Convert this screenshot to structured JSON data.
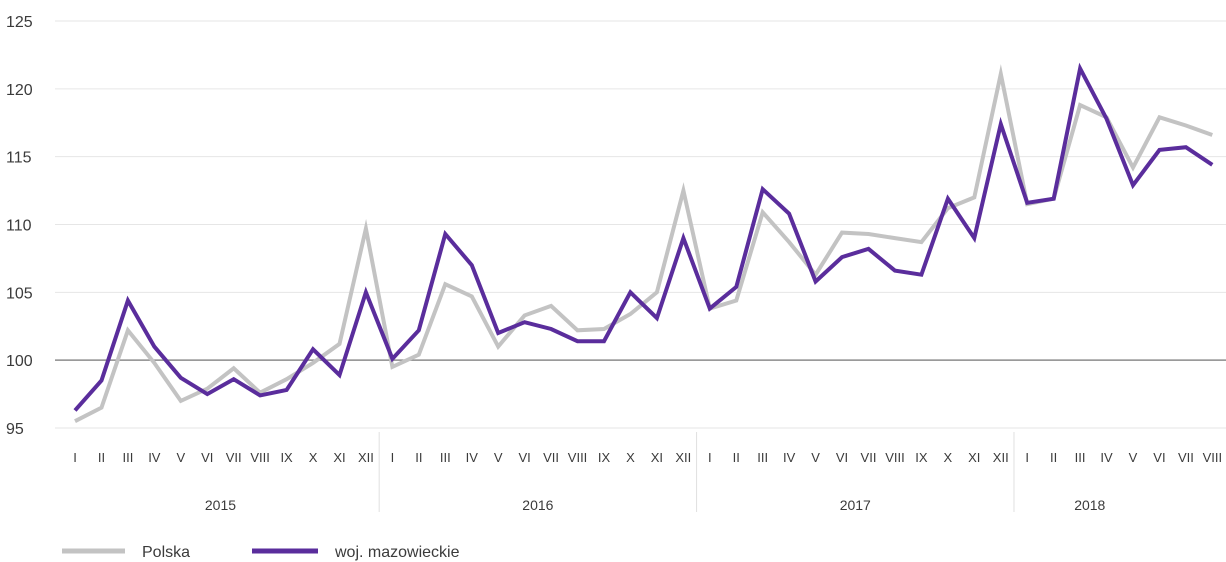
{
  "chart_data": {
    "type": "line",
    "ylim": [
      95,
      125
    ],
    "yticks": [
      95,
      100,
      105,
      110,
      115,
      120,
      125
    ],
    "reference_line": 100,
    "grid": "horizontal",
    "legend_position": "bottom-left",
    "month_labels": [
      "I",
      "II",
      "III",
      "IV",
      "V",
      "VI",
      "VII",
      "VIII",
      "IX",
      "X",
      "XI",
      "XII"
    ],
    "years": [
      {
        "label": "2015",
        "months": 12
      },
      {
        "label": "2016",
        "months": 12
      },
      {
        "label": "2017",
        "months": 12
      },
      {
        "label": "2018",
        "months": 8
      }
    ],
    "series": [
      {
        "name": "Polska",
        "color": "#c3c3c3",
        "values": [
          95.5,
          96.5,
          102.2,
          99.8,
          97.0,
          97.9,
          99.4,
          97.6,
          98.6,
          99.8,
          101.2,
          109.7,
          99.5,
          100.4,
          105.6,
          104.7,
          101.0,
          103.3,
          104.0,
          102.2,
          102.3,
          103.4,
          105.0,
          112.5,
          103.8,
          104.4,
          110.9,
          108.7,
          106.3,
          109.4,
          109.3,
          109.0,
          108.7,
          111.2,
          112.0,
          121.1,
          111.5,
          111.9,
          118.8,
          117.9,
          114.2,
          117.9,
          117.3,
          116.6
        ]
      },
      {
        "name": "woj. mazowieckie",
        "color": "#5a2d9c",
        "values": [
          96.3,
          98.5,
          104.4,
          101.0,
          98.7,
          97.5,
          98.6,
          97.4,
          97.8,
          100.8,
          98.9,
          105.0,
          100.1,
          102.2,
          109.3,
          107.0,
          102.0,
          102.8,
          102.3,
          101.4,
          101.4,
          105.0,
          103.1,
          109.0,
          103.8,
          105.4,
          112.6,
          110.8,
          105.8,
          107.6,
          108.2,
          106.6,
          106.3,
          111.9,
          109.0,
          117.4,
          111.6,
          111.9,
          121.5,
          117.8,
          112.9,
          115.5,
          115.7,
          114.4
        ]
      }
    ]
  }
}
